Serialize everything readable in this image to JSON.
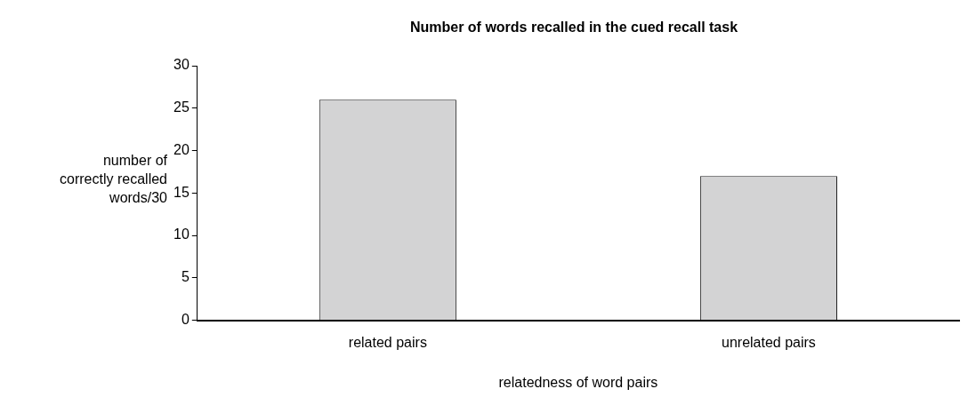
{
  "chart_data": {
    "type": "bar",
    "title": "Number of words recalled in the cued recall task",
    "xlabel": "relatedness of word pairs",
    "ylabel": "number of correctly recalled words/30",
    "categories": [
      "related pairs",
      "unrelated pairs"
    ],
    "values": [
      26,
      17
    ],
    "color": "#d3d3d4",
    "ylim": [
      0,
      30
    ],
    "yticks": [
      0,
      5,
      10,
      15,
      20,
      25,
      30
    ],
    "grid": false,
    "legend": false
  }
}
